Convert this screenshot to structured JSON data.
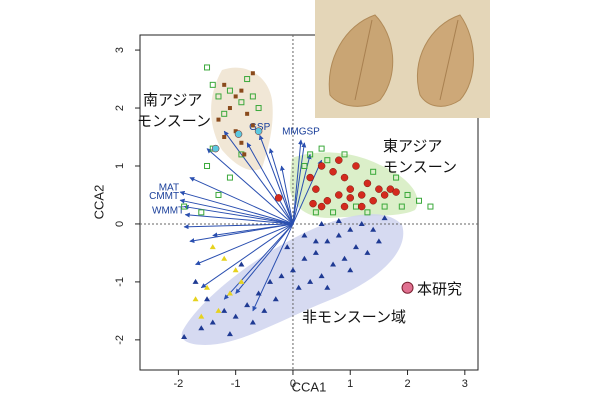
{
  "chart_data": {
    "type": "scatter",
    "xlabel": "CCA1",
    "ylabel": "CCA2",
    "xlim": [
      -2.67,
      3.23
    ],
    "ylim": [
      -2.52,
      3.26
    ],
    "xticks": [
      -2,
      -1,
      0,
      1,
      2,
      3
    ],
    "yticks": [
      -2,
      -1,
      0,
      1,
      2,
      3
    ],
    "series": [
      {
        "marker": "triangle",
        "color": "#1f3a93",
        "x": [
          -1.9,
          -1.6,
          -1.4,
          -1.2,
          -1.0,
          -0.8,
          -0.6,
          -0.4,
          -0.2,
          0.0,
          0.2,
          0.4,
          0.6,
          0.8,
          1.0,
          1.2,
          1.4,
          -0.5,
          -0.3,
          0.1,
          0.3,
          0.5,
          0.7,
          0.9,
          1.1,
          1.3,
          1.5,
          0.2,
          0.5,
          0.8,
          1.0,
          0.6,
          -0.1,
          0.4,
          -1.1,
          -0.7,
          -1.5,
          -1.7,
          1.6,
          -0.9
        ],
        "values": [
          -1.95,
          -1.8,
          -1.7,
          -1.5,
          -1.6,
          -1.4,
          -1.2,
          -1.0,
          -0.9,
          -0.8,
          -0.6,
          -0.5,
          -0.3,
          -0.2,
          -0.1,
          0.0,
          -0.1,
          -1.5,
          -1.3,
          -1.1,
          -1.0,
          -0.9,
          -0.7,
          -0.6,
          -0.4,
          -0.5,
          -0.3,
          -0.2,
          0.0,
          0.05,
          -0.8,
          -1.1,
          -0.4,
          -0.3,
          -1.9,
          -1.7,
          -1.3,
          -1.0,
          0.1,
          -0.7
        ]
      },
      {
        "marker": "open-square",
        "color": "#3aa83a",
        "x": [
          0.2,
          0.3,
          0.5,
          0.6,
          0.9,
          1.1,
          1.4,
          1.6,
          1.8,
          2.0,
          2.2,
          2.4,
          0.4,
          0.7,
          1.3,
          1.9,
          -1.5,
          -1.4,
          -1.3,
          -1.1,
          -0.9,
          -0.8,
          -0.7,
          -1.2,
          -0.6,
          -1.4,
          -1.5,
          -1.3,
          -1.1,
          -0.9,
          -1.9,
          -1.6
        ],
        "values": [
          1.0,
          1.2,
          1.3,
          1.1,
          1.2,
          0.3,
          0.9,
          0.3,
          0.8,
          0.5,
          0.4,
          0.3,
          0.2,
          0.2,
          0.2,
          0.3,
          2.7,
          2.4,
          2.2,
          2.3,
          2.1,
          2.5,
          2.2,
          1.9,
          2.0,
          1.3,
          1.0,
          0.5,
          0.8,
          1.2,
          0.3,
          0.2
        ]
      },
      {
        "marker": "square",
        "color": "#8a4a1c",
        "x": [
          -1.2,
          -1.0,
          -0.9,
          -1.1,
          -0.8,
          -1.3,
          -0.7,
          -1.0,
          -0.9,
          -0.7,
          -1.2,
          -0.85
        ],
        "values": [
          2.4,
          2.2,
          2.3,
          2.0,
          1.9,
          1.8,
          2.6,
          1.6,
          1.4,
          1.7,
          1.5,
          1.2
        ]
      },
      {
        "marker": "circle",
        "color": "#d42a1e",
        "x": [
          0.3,
          0.4,
          0.5,
          0.6,
          0.7,
          0.8,
          0.9,
          1.0,
          1.1,
          1.2,
          1.3,
          1.4,
          1.5,
          1.6,
          1.7,
          1.8,
          0.5,
          0.9,
          1.2,
          0.8,
          -0.25,
          0.35,
          1.0
        ],
        "values": [
          0.8,
          0.6,
          1.0,
          0.4,
          0.9,
          0.5,
          0.8,
          0.6,
          1.0,
          0.5,
          0.7,
          0.4,
          0.6,
          0.5,
          0.6,
          0.55,
          0.3,
          0.3,
          0.3,
          1.1,
          0.45,
          0.35,
          0.45
        ]
      },
      {
        "marker": "circle",
        "color": "#5bc8e0",
        "x": [
          -1.35,
          -0.6,
          -0.95
        ],
        "values": [
          1.3,
          1.6,
          1.55
        ]
      },
      {
        "marker": "triangle",
        "color": "#e6d21e",
        "x": [
          -1.0,
          -1.1,
          -1.3,
          -1.5,
          -1.2,
          -1.6,
          -0.9,
          -1.4,
          -1.7
        ],
        "values": [
          -0.8,
          -1.2,
          -1.5,
          -1.1,
          -0.6,
          -1.6,
          -1.0,
          -0.4,
          -1.3
        ]
      },
      {
        "marker": "big-circle",
        "color": "#e07090",
        "x": [
          2.0
        ],
        "values": [
          -1.1
        ]
      }
    ],
    "vectors": {
      "x": [
        -0.58,
        0.14,
        -1.97,
        -1.97,
        -1.88,
        -1.5,
        -1.2,
        -0.8,
        -0.4,
        -0.2,
        0.2,
        0.3,
        0.5,
        -1.8,
        -1.9,
        -1.9,
        -1.8,
        -1.7,
        -1.6,
        -1.2,
        -1.0,
        -0.7,
        -1.4
      ],
      "y": [
        1.53,
        1.45,
        0.55,
        0.41,
        0.16,
        1.3,
        1.6,
        1.4,
        1.3,
        1.0,
        1.4,
        1.2,
        1.1,
        0.8,
        0.3,
        -0.05,
        -0.3,
        -0.7,
        -1.1,
        -1.3,
        -1.2,
        -1.5,
        -0.2
      ],
      "labels": [
        "GSP",
        "MMGSP",
        "MAT",
        "CMMT",
        "WMMT",
        null,
        null,
        null,
        null,
        null,
        null,
        null,
        null,
        null,
        null,
        null,
        null,
        null,
        null,
        null,
        null,
        null,
        null
      ],
      "color": "#2a4fb0"
    },
    "region_labels": {
      "south_asia": [
        "南アジア",
        "モンスーン"
      ],
      "east_asia": [
        "東アジア",
        "モンスーン"
      ],
      "non_monsoon": "非モンスーン域",
      "this_study": "本研究"
    }
  }
}
